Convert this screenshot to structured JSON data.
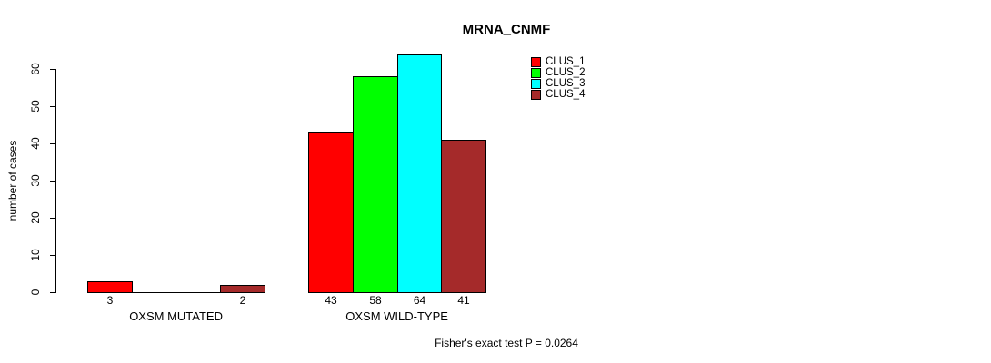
{
  "chart_data": {
    "type": "bar",
    "title": "MRNA_CNMF",
    "xlabel": "",
    "ylabel": "number of cases",
    "categories": [
      "OXSM MUTATED",
      "OXSM WILD-TYPE"
    ],
    "series": [
      {
        "name": "CLUS_1",
        "color": "#FF0000",
        "values": [
          3,
          43
        ]
      },
      {
        "name": "CLUS_2",
        "color": "#00FF00",
        "values": [
          0,
          58
        ]
      },
      {
        "name": "CLUS_3",
        "color": "#00FFFF",
        "values": [
          0,
          64
        ]
      },
      {
        "name": "CLUS_4",
        "color": "#A52A2A",
        "values": [
          2,
          41
        ]
      }
    ],
    "yticks": [
      0,
      10,
      20,
      30,
      40,
      50,
      60
    ],
    "ylim": [
      0,
      64
    ],
    "grid": false,
    "bar_borders": "#000000",
    "bar_value_labels_shown": true,
    "legend_position": "top-right",
    "annotation": "Fisher's exact test P = 0.0264"
  }
}
